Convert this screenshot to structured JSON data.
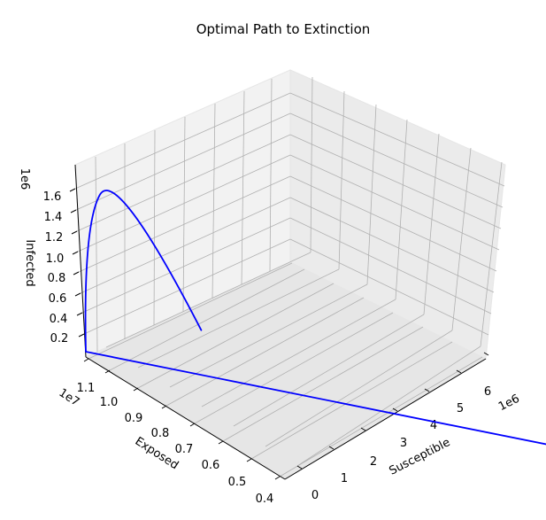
{
  "chart_data": {
    "type": "line3d",
    "title": "Optimal Path to Extinction",
    "axes": {
      "x": {
        "label": "Susceptible",
        "offset": "1e6",
        "ticks": [
          "0",
          "1",
          "2",
          "3",
          "4",
          "5",
          "6"
        ]
      },
      "y": {
        "label": "Exposed",
        "offset": "1e7",
        "ticks": [
          "0.4",
          "0.5",
          "0.6",
          "0.7",
          "0.8",
          "0.9",
          "1.0",
          "1.1"
        ]
      },
      "z": {
        "label": "Infected",
        "offset": "1e6",
        "ticks": [
          "0.2",
          "0.4",
          "0.6",
          "0.8",
          "1.0",
          "1.2",
          "1.4",
          "1.6"
        ]
      }
    },
    "grid": true,
    "series": [
      {
        "color": "#0000ff",
        "path_points": [
          {
            "S": 6.7,
            "E": 0.42,
            "I": 0.05
          },
          {
            "S": 0.0,
            "E": 1.1,
            "I": 0.05
          },
          {
            "S": 0.05,
            "E": 1.12,
            "I": 1.2
          },
          {
            "S": 0.5,
            "E": 1.1,
            "I": 1.8
          },
          {
            "S": 1.2,
            "E": 0.95,
            "I": 0.5
          }
        ]
      }
    ]
  }
}
